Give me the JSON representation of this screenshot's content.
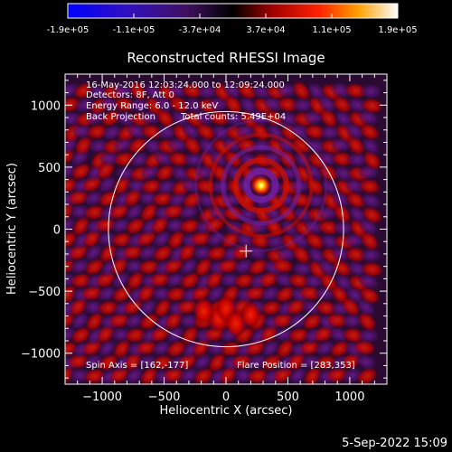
{
  "chart_data": {
    "type": "heatmap",
    "title": "Reconstructed RHESSI Image",
    "xlabel": "Heliocentric X (arcsec)",
    "ylabel": "Heliocentric Y (arcsec)",
    "xlim": [
      -1300,
      1300
    ],
    "ylim": [
      -1250,
      1250
    ],
    "xticks": [
      -1000,
      -500,
      0,
      500,
      1000
    ],
    "yticks": [
      -1000,
      -500,
      0,
      500,
      1000
    ],
    "colorbar": {
      "range": [
        -190000,
        190000
      ],
      "tick_labels": [
        "-1.9e+05",
        "-1.1e+05",
        "-3.7e+04",
        "3.7e+04",
        "1.1e+05",
        "1.9e+05"
      ],
      "colors": [
        "#0000ff",
        "#4a1a88",
        "#000000",
        "#c00000",
        "#ff8000",
        "#ffffff"
      ]
    },
    "annotations": {
      "time_range": "16-May-2016 12:03:24.000 to 12:09:24.000",
      "detectors": "Detectors: 8F, Att 0",
      "energy_range": "Energy Range: 6.0 - 12.0 keV",
      "method": "Back Projection",
      "total_counts": "Total counts: 5.49E+04",
      "spin_axis": "Spin Axis = [162,-177]",
      "flare_position": "Flare Position = [283,353]"
    },
    "peak_source": {
      "x": 283,
      "y": 353
    },
    "spin_axis_marker": {
      "x": 162,
      "y": -177
    },
    "solar_disk_radius_arcsec": 950,
    "grid": false
  },
  "footer": {
    "date": "5-Sep-2022 15:09"
  }
}
